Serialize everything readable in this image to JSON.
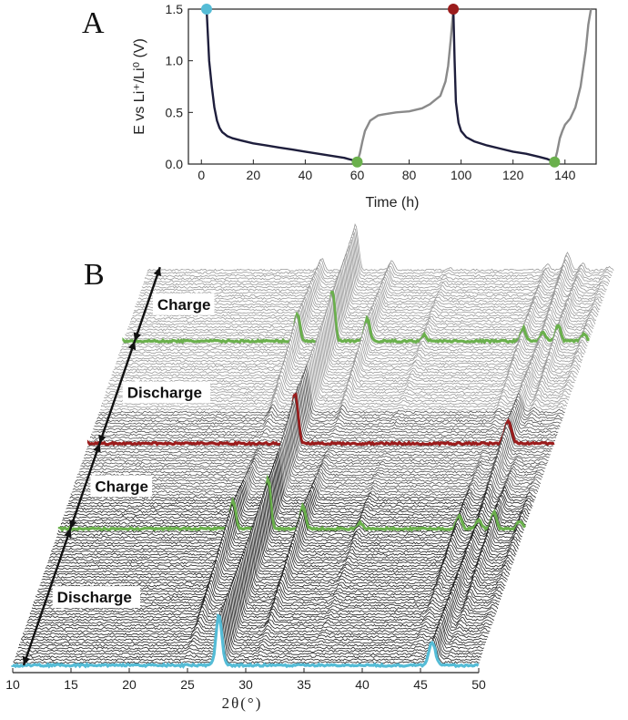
{
  "panels": {
    "a_label": "A",
    "b_label": "B"
  },
  "colors": {
    "start": "#55bcd6",
    "charge_end": "#6ab04c",
    "discharge_end": "#9b1c1c",
    "discharge_curve": "#1e1e3c",
    "charge_curve": "#8a8a8a",
    "trace_dark": "#222222",
    "trace_light": "#9a9a9a"
  },
  "chart_data": [
    {
      "type": "line",
      "xlabel": "Time (h)",
      "ylabel": "E vs Li⁺/Li⁰ (V)",
      "xlim": [
        -5,
        152
      ],
      "ylim": [
        0,
        1.5
      ],
      "x_ticks": [
        0,
        20,
        40,
        60,
        80,
        100,
        120,
        140
      ],
      "y_ticks": [
        0.0,
        0.5,
        1.0,
        1.5
      ],
      "x_tick_labels": [
        "0",
        "20",
        "40",
        "60",
        "80",
        "100",
        "120",
        "140"
      ],
      "y_tick_labels": [
        "0.0",
        "0.5",
        "1.0",
        "1.5"
      ],
      "series": [
        {
          "role": "discharge",
          "color": "#1e1e3c",
          "x": [
            2,
            2.5,
            3,
            4,
            5,
            6,
            7,
            8,
            9,
            10,
            12,
            15,
            20,
            25,
            30,
            35,
            40,
            45,
            50,
            55,
            58,
            60
          ],
          "y": [
            1.5,
            1.25,
            1.0,
            0.75,
            0.55,
            0.42,
            0.35,
            0.31,
            0.29,
            0.27,
            0.25,
            0.23,
            0.2,
            0.18,
            0.16,
            0.14,
            0.12,
            0.1,
            0.08,
            0.06,
            0.04,
            0.02
          ]
        },
        {
          "role": "charge",
          "color": "#8a8a8a",
          "x": [
            60,
            61,
            62,
            63,
            65,
            68,
            70,
            75,
            80,
            85,
            88,
            90,
            92,
            94,
            95,
            96,
            97
          ],
          "y": [
            0.02,
            0.1,
            0.22,
            0.32,
            0.42,
            0.47,
            0.48,
            0.5,
            0.51,
            0.54,
            0.58,
            0.62,
            0.66,
            0.8,
            0.95,
            1.2,
            1.5
          ]
        },
        {
          "role": "discharge",
          "color": "#1e1e3c",
          "x": [
            97,
            97.5,
            98,
            99,
            100,
            102,
            105,
            110,
            115,
            120,
            125,
            130,
            133,
            135,
            136
          ],
          "y": [
            1.5,
            1.0,
            0.6,
            0.4,
            0.32,
            0.26,
            0.22,
            0.18,
            0.15,
            0.12,
            0.1,
            0.07,
            0.05,
            0.03,
            0.02
          ]
        },
        {
          "role": "charge",
          "color": "#8a8a8a",
          "x": [
            136,
            137,
            138,
            139,
            140,
            142,
            144,
            146,
            148,
            149,
            150
          ],
          "y": [
            0.02,
            0.12,
            0.25,
            0.32,
            0.38,
            0.44,
            0.55,
            0.75,
            1.1,
            1.35,
            1.5
          ]
        }
      ],
      "markers": [
        {
          "x": 2,
          "y": 1.5,
          "color": "#55bcd6"
        },
        {
          "x": 60,
          "y": 0.02,
          "color": "#6ab04c"
        },
        {
          "x": 97,
          "y": 1.5,
          "color": "#9b1c1c"
        },
        {
          "x": 136,
          "y": 0.02,
          "color": "#6ab04c"
        }
      ]
    },
    {
      "type": "waterfall",
      "xlabel": "2θ(°)",
      "xlim": [
        10,
        50
      ],
      "x_ticks": [
        10,
        15,
        20,
        25,
        30,
        35,
        40,
        45,
        50
      ],
      "x_tick_labels": [
        "10",
        "15",
        "20",
        "25",
        "30",
        "35",
        "40",
        "45",
        "50"
      ],
      "scan_count": 140,
      "highlighted_scans": [
        {
          "index": 0,
          "color": "#55bcd6"
        },
        {
          "index": 48,
          "color": "#6ab04c"
        },
        {
          "index": 78,
          "color": "#9b1c1c"
        },
        {
          "index": 114,
          "color": "#6ab04c"
        }
      ],
      "peaks_discharged": [
        {
          "pos": 27.7,
          "height": 1.0,
          "width": 0.35
        },
        {
          "pos": 46.0,
          "height": 0.45,
          "width": 0.4
        }
      ],
      "peaks_charged": [
        {
          "pos": 24.9,
          "height": 0.55
        },
        {
          "pos": 27.9,
          "height": 1.0
        },
        {
          "pos": 30.9,
          "height": 0.45
        },
        {
          "pos": 35.8,
          "height": 0.12
        },
        {
          "pos": 44.3,
          "height": 0.25
        },
        {
          "pos": 46.0,
          "height": 0.18
        },
        {
          "pos": 47.3,
          "height": 0.32
        },
        {
          "pos": 49.5,
          "height": 0.15
        }
      ],
      "phase_labels": [
        "Discharge",
        "Charge",
        "Discharge",
        "Charge"
      ]
    }
  ]
}
